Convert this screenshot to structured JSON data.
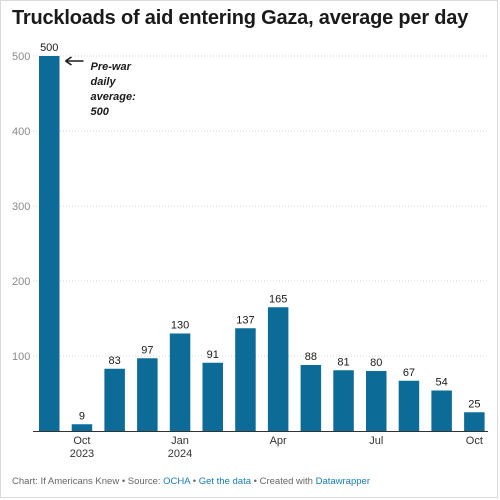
{
  "chart_data": {
    "type": "bar",
    "title": "Truckloads of aid entering Gaza, average per day",
    "xlabel": "",
    "ylabel": "",
    "ylim": [
      0,
      500
    ],
    "yticks": [
      100,
      200,
      300,
      400,
      500
    ],
    "grid": true,
    "bar_color": "#0d6b97",
    "values": [
      500,
      9,
      83,
      97,
      130,
      91,
      137,
      165,
      88,
      81,
      80,
      67,
      54,
      25
    ],
    "x_tick_labels": [
      {
        "bar_index": 1,
        "lines": [
          "Oct",
          "2023"
        ]
      },
      {
        "bar_index": 4,
        "lines": [
          "Jan",
          "2024"
        ]
      },
      {
        "bar_index": 7,
        "lines": [
          "Apr"
        ]
      },
      {
        "bar_index": 10,
        "lines": [
          "Jul"
        ]
      },
      {
        "bar_index": 13,
        "lines": [
          "Oct"
        ]
      }
    ],
    "annotation": {
      "bar_index": 0,
      "lines": [
        "Pre-war",
        "daily",
        "average:",
        "500"
      ]
    }
  },
  "footer": {
    "prefix": "Chart: If Americans Knew • Source: ",
    "source_link": "OCHA",
    "sep1": " • ",
    "data_link": "Get the data",
    "sep2": " • Created with ",
    "tool_link": "Datawrapper"
  }
}
